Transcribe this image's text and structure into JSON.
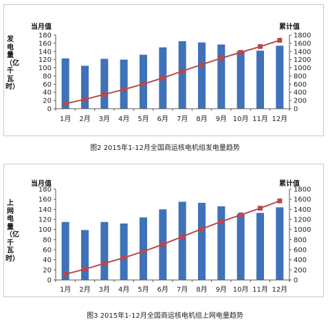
{
  "chart_data": [
    {
      "type": "bar+line",
      "caption": "图2   2015年1-12月全国商运核电机组发电量趋势",
      "ylabel_left": "发电量（亿千瓦时）",
      "unit_left": "当月值",
      "unit_right": "累计值",
      "categories": [
        "1月",
        "2月",
        "3月",
        "4月",
        "5月",
        "6月",
        "7月",
        "8月",
        "9月",
        "10月",
        "11月",
        "12月"
      ],
      "ylim_left": [
        0,
        180
      ],
      "yticks_left": [
        0,
        20,
        40,
        60,
        80,
        100,
        120,
        140,
        160,
        180
      ],
      "ylim_right": [
        0,
        1800
      ],
      "yticks_right": [
        0,
        200,
        400,
        600,
        800,
        1000,
        1200,
        1400,
        1600,
        1800
      ],
      "series": [
        {
          "type": "bar",
          "axis": "left",
          "values": [
            123,
            105,
            122,
            120,
            132,
            150,
            165,
            162,
            157,
            141,
            142,
            154
          ]
        },
        {
          "type": "line",
          "axis": "right",
          "values": [
            123,
            228,
            350,
            470,
            602,
            752,
            917,
            1079,
            1236,
            1377,
            1519,
            1673
          ]
        }
      ]
    },
    {
      "type": "bar+line",
      "caption": "图3   2015年1-12月全国商运核电机组上网电量趋势",
      "ylabel_left": "上网电量（亿千瓦时）",
      "unit_left": "当月值",
      "unit_right": "累计值",
      "categories": [
        "1月",
        "2月",
        "3月",
        "4月",
        "5月",
        "6月",
        "7月",
        "8月",
        "9月",
        "10月",
        "11月",
        "12月"
      ],
      "ylim_left": [
        0,
        180
      ],
      "yticks_left": [
        0,
        20,
        40,
        60,
        80,
        100,
        120,
        140,
        160,
        180
      ],
      "ylim_right": [
        0,
        1800
      ],
      "yticks_right": [
        0,
        200,
        400,
        600,
        800,
        1000,
        1200,
        1400,
        1600,
        1800
      ],
      "series": [
        {
          "type": "bar",
          "axis": "left",
          "values": [
            115,
            99,
            115,
            112,
            124,
            140,
            155,
            153,
            146,
            131,
            133,
            144
          ]
        },
        {
          "type": "line",
          "axis": "right",
          "values": [
            115,
            214,
            329,
            441,
            565,
            705,
            860,
            1013,
            1159,
            1290,
            1423,
            1567
          ]
        }
      ]
    }
  ],
  "colors": {
    "bar": "#3f72b8",
    "line": "#b8484a"
  }
}
